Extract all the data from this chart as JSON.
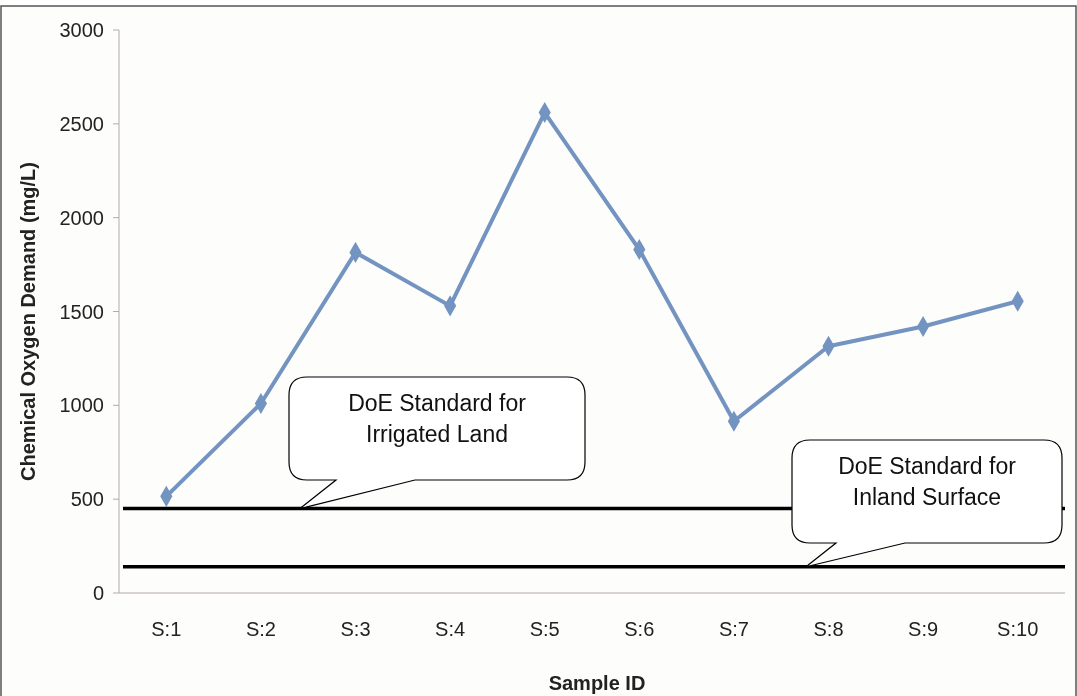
{
  "chart_data": {
    "type": "line",
    "xlabel": "Sample ID",
    "ylabel": "Chemical Oxygen Demand (mg/L)",
    "categories": [
      "S:1",
      "S:2",
      "S:3",
      "S:4",
      "S:5",
      "S:6",
      "S:7",
      "S:8",
      "S:9",
      "S:10"
    ],
    "series": [
      {
        "color": "#7393c0",
        "values": [
          515,
          1010,
          1815,
          1530,
          2560,
          1830,
          915,
          1315,
          1420,
          1555
        ]
      }
    ],
    "ylim": [
      0,
      3000
    ],
    "yticks": [
      0,
      500,
      1000,
      1500,
      2000,
      2500,
      3000
    ],
    "grid": false,
    "marker": "diamond",
    "line_style": "solid",
    "ref_lines": [
      {
        "axis": "y",
        "value": 450,
        "label": "DoE Standard for Irrigated Land",
        "color": "#000000"
      },
      {
        "axis": "y",
        "value": 140,
        "label": "DoE Standard for Inland Surface",
        "color": "#000000"
      }
    ]
  }
}
